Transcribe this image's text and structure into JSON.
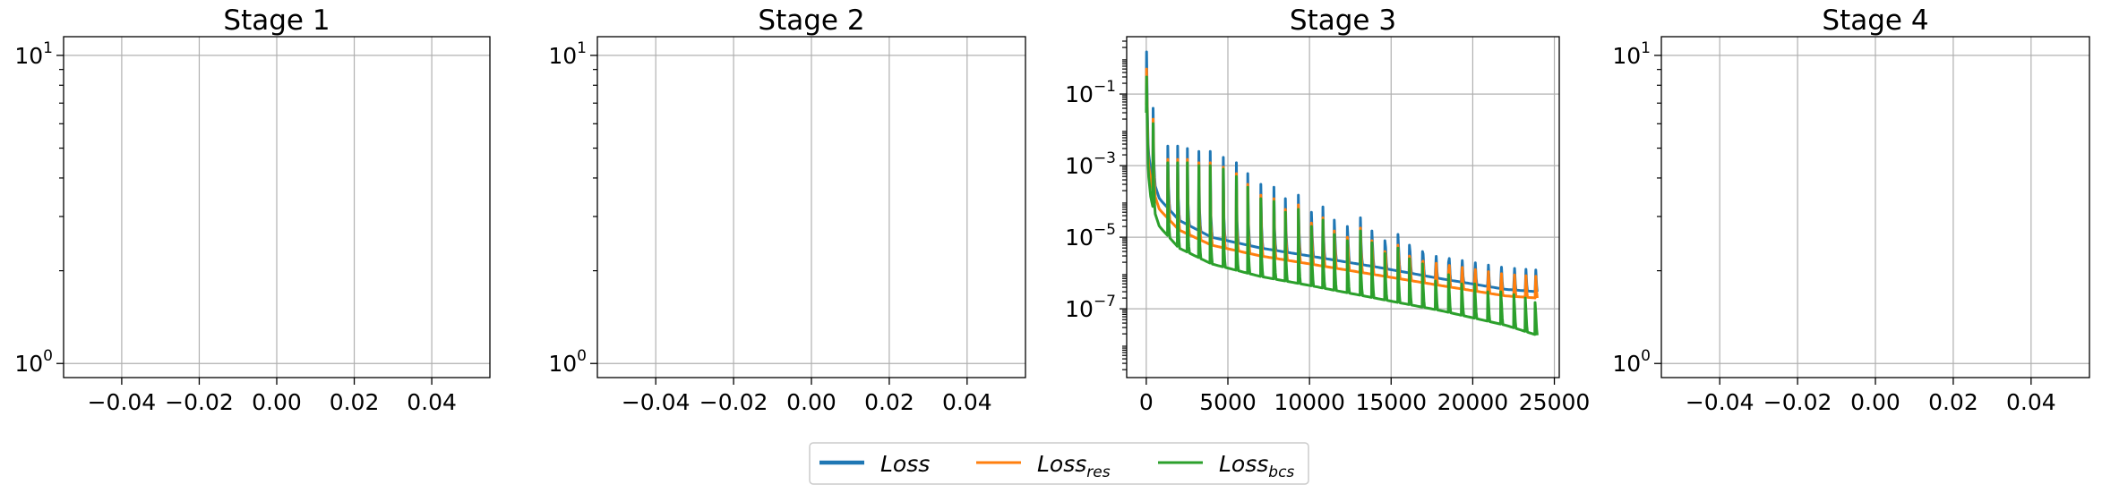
{
  "colors": {
    "loss": "#1f77b4",
    "loss_res": "#ff7f0e",
    "loss_bcs": "#2ca02c",
    "grid": "#b0b0b0"
  },
  "legend": {
    "placement": "bottom-center",
    "entries": [
      {
        "key": "loss",
        "base": "Loss",
        "sub": ""
      },
      {
        "key": "loss_res",
        "base": "Loss",
        "sub": "res"
      },
      {
        "key": "loss_bcs",
        "base": "Loss",
        "sub": "bcs"
      }
    ]
  },
  "chart_data": [
    {
      "type": "line",
      "title": "Stage 1",
      "yscale": "log",
      "grid": true,
      "xlim": [
        -0.055,
        0.055
      ],
      "ylim": [
        0.9,
        11.5
      ],
      "xticks": [
        -0.04,
        -0.02,
        0.0,
        0.02,
        0.04
      ],
      "xtick_labels": [
        "−0.04",
        "−0.02",
        "0.00",
        "0.02",
        "0.04"
      ],
      "yticks": [
        1,
        10
      ],
      "ytick_labels": [
        {
          "base": "10",
          "exp": "0"
        },
        {
          "base": "10",
          "exp": "1"
        }
      ],
      "series": []
    },
    {
      "type": "line",
      "title": "Stage 2",
      "yscale": "log",
      "grid": true,
      "xlim": [
        -0.055,
        0.055
      ],
      "ylim": [
        0.9,
        11.5
      ],
      "xticks": [
        -0.04,
        -0.02,
        0.0,
        0.02,
        0.04
      ],
      "xtick_labels": [
        "−0.04",
        "−0.02",
        "0.00",
        "0.02",
        "0.04"
      ],
      "yticks": [
        1,
        10
      ],
      "ytick_labels": [
        {
          "base": "10",
          "exp": "0"
        },
        {
          "base": "10",
          "exp": "1"
        }
      ],
      "series": []
    },
    {
      "type": "line",
      "title": "Stage 3",
      "yscale": "log",
      "grid": true,
      "xlim": [
        -1200,
        25300
      ],
      "ylim": [
        1.2e-09,
        4.0
      ],
      "xticks": [
        0,
        5000,
        10000,
        15000,
        20000,
        25000
      ],
      "xtick_labels": [
        "0",
        "5000",
        "10000",
        "15000",
        "20000",
        "25000"
      ],
      "yticks": [
        1e-07,
        1e-05,
        0.001,
        0.1
      ],
      "ytick_labels": [
        {
          "base": "10",
          "exp": "−7"
        },
        {
          "base": "10",
          "exp": "−5"
        },
        {
          "base": "10",
          "exp": "−3"
        },
        {
          "base": "10",
          "exp": "−1"
        }
      ],
      "series": [
        {
          "key": "loss",
          "name": "Loss",
          "baseline": [
            [
              0,
              0.1
            ],
            [
              100,
              0.003
            ],
            [
              300,
              0.0006
            ],
            [
              800,
              0.00012
            ],
            [
              2000,
              3e-05
            ],
            [
              4000,
              1e-05
            ],
            [
              7000,
              5e-06
            ],
            [
              10000,
              3e-06
            ],
            [
              14000,
              1.5e-06
            ],
            [
              18000,
              7e-07
            ],
            [
              22000,
              3.5e-07
            ],
            [
              24000,
              3e-07
            ]
          ],
          "spikes": [
            [
              0,
              1.5
            ],
            [
              400,
              0.04
            ],
            [
              1300,
              0.0035
            ],
            [
              1900,
              0.0035
            ],
            [
              2500,
              0.003
            ],
            [
              3200,
              0.0025
            ],
            [
              3900,
              0.0025
            ],
            [
              4700,
              0.0017
            ],
            [
              5500,
              0.0012
            ],
            [
              6200,
              0.0006
            ],
            [
              7000,
              0.0003
            ],
            [
              7800,
              0.00025
            ],
            [
              8500,
              0.00012
            ],
            [
              9300,
              0.00015
            ],
            [
              10100,
              5e-05
            ],
            [
              10800,
              7e-05
            ],
            [
              11500,
              3e-05
            ],
            [
              12300,
              2e-05
            ],
            [
              13100,
              3.5e-05
            ],
            [
              13800,
              1.5e-05
            ],
            [
              14600,
              8e-06
            ],
            [
              15400,
              1.2e-05
            ],
            [
              16100,
              6e-06
            ],
            [
              16900,
              4e-06
            ],
            [
              17700,
              1.2e-06
            ],
            [
              18500,
              2e-06
            ],
            [
              19300,
              1e-06
            ],
            [
              20100,
              1e-06
            ],
            [
              20900,
              6e-07
            ],
            [
              21700,
              6e-07
            ],
            [
              22500,
              5e-07
            ],
            [
              23200,
              4e-07
            ],
            [
              23800,
              3e-07
            ]
          ]
        },
        {
          "key": "loss_res",
          "name": "Loss_res",
          "baseline": [
            [
              0,
              0.05
            ],
            [
              100,
              0.0015
            ],
            [
              300,
              0.0003
            ],
            [
              800,
              6e-05
            ],
            [
              2000,
              1.6e-05
            ],
            [
              4000,
              6e-06
            ],
            [
              7000,
              3e-06
            ],
            [
              10000,
              1.8e-06
            ],
            [
              14000,
              9e-07
            ],
            [
              18000,
              4.5e-07
            ],
            [
              22000,
              2.3e-07
            ],
            [
              24000,
              2e-07
            ]
          ],
          "spikes": [
            [
              0,
              0.5
            ],
            [
              400,
              0.02
            ],
            [
              1300,
              0.0015
            ],
            [
              1900,
              0.0015
            ],
            [
              2500,
              0.0015
            ],
            [
              3200,
              0.0012
            ],
            [
              3900,
              0.0012
            ],
            [
              4700,
              0.0009
            ],
            [
              5500,
              0.0006
            ],
            [
              6200,
              0.0003
            ],
            [
              7000,
              0.00015
            ],
            [
              7800,
              0.00012
            ],
            [
              8500,
              6e-05
            ],
            [
              9300,
              8e-05
            ],
            [
              10100,
              2.5e-05
            ],
            [
              10800,
              3.5e-05
            ],
            [
              11500,
              1.5e-05
            ],
            [
              12300,
              1e-05
            ],
            [
              13100,
              1.8e-05
            ],
            [
              13800,
              8e-06
            ],
            [
              14600,
              4e-06
            ],
            [
              15400,
              6e-06
            ],
            [
              16100,
              3e-06
            ],
            [
              16900,
              2e-06
            ],
            [
              17700,
              7e-07
            ],
            [
              18500,
              1.1e-06
            ],
            [
              19300,
              6e-07
            ],
            [
              20100,
              6e-07
            ],
            [
              20900,
              4e-07
            ],
            [
              21700,
              4e-07
            ],
            [
              22500,
              3e-07
            ],
            [
              23200,
              2.5e-07
            ],
            [
              23800,
              2e-07
            ]
          ]
        },
        {
          "key": "loss_bcs",
          "name": "Loss_bcs",
          "baseline": [
            [
              0,
              0.03
            ],
            [
              100,
              0.0008
            ],
            [
              300,
              0.0001
            ],
            [
              800,
              2e-05
            ],
            [
              2000,
              5e-06
            ],
            [
              4000,
              1.8e-06
            ],
            [
              7000,
              8e-07
            ],
            [
              10000,
              4.5e-07
            ],
            [
              14000,
              2e-07
            ],
            [
              18000,
              9e-08
            ],
            [
              22000,
              3.5e-08
            ],
            [
              24000,
              1.8e-08
            ]
          ],
          "spikes": [
            [
              0,
              0.3
            ],
            [
              400,
              0.015
            ],
            [
              1300,
              0.0012
            ],
            [
              1900,
              0.0012
            ],
            [
              2500,
              0.0012
            ],
            [
              3200,
              0.001
            ],
            [
              3900,
              0.001
            ],
            [
              4700,
              0.0008
            ],
            [
              5500,
              0.0005
            ],
            [
              6200,
              0.00025
            ],
            [
              7000,
              0.00012
            ],
            [
              7800,
              0.0001
            ],
            [
              8500,
              5e-05
            ],
            [
              9300,
              6e-05
            ],
            [
              10100,
              2e-05
            ],
            [
              10800,
              3e-05
            ],
            [
              11500,
              1.2e-05
            ],
            [
              12300,
              8e-06
            ],
            [
              13100,
              1.5e-05
            ],
            [
              13800,
              7e-06
            ],
            [
              14600,
              3.5e-06
            ],
            [
              15400,
              5e-06
            ],
            [
              16100,
              2.5e-06
            ],
            [
              16900,
              1.8e-06
            ],
            [
              17700,
              6e-07
            ],
            [
              18500,
              9e-07
            ],
            [
              19300,
              5e-07
            ],
            [
              20100,
              5e-07
            ],
            [
              20900,
              3e-07
            ],
            [
              21700,
              3e-07
            ],
            [
              22500,
              2.5e-07
            ],
            [
              23200,
              2e-07
            ],
            [
              23800,
              1.5e-07
            ]
          ]
        }
      ]
    },
    {
      "type": "line",
      "title": "Stage 4",
      "yscale": "log",
      "grid": true,
      "xlim": [
        -0.055,
        0.055
      ],
      "ylim": [
        0.9,
        11.5
      ],
      "xticks": [
        -0.04,
        -0.02,
        0.0,
        0.02,
        0.04
      ],
      "xtick_labels": [
        "−0.04",
        "−0.02",
        "0.00",
        "0.02",
        "0.04"
      ],
      "yticks": [
        1,
        10
      ],
      "ytick_labels": [
        {
          "base": "10",
          "exp": "0"
        },
        {
          "base": "10",
          "exp": "1"
        }
      ],
      "series": []
    }
  ]
}
